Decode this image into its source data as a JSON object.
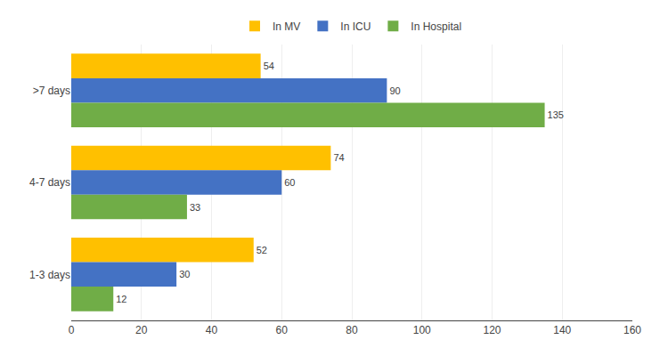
{
  "chart_data": {
    "type": "bar",
    "orientation": "horizontal",
    "categories": [
      ">7 days",
      "4-7 days",
      "1-3 days"
    ],
    "series": [
      {
        "name": "In MV",
        "color": "#FFC000",
        "values": [
          54,
          74,
          52
        ]
      },
      {
        "name": "In ICU",
        "color": "#4472C4",
        "values": [
          90,
          60,
          30
        ]
      },
      {
        "name": "In Hospital",
        "color": "#70AD47",
        "values": [
          135,
          33,
          12
        ]
      }
    ],
    "xlim": [
      0,
      160
    ],
    "xticks": [
      0,
      20,
      40,
      60,
      80,
      100,
      120,
      140,
      160
    ],
    "grid": true,
    "legend": "top",
    "data_labels": true
  }
}
